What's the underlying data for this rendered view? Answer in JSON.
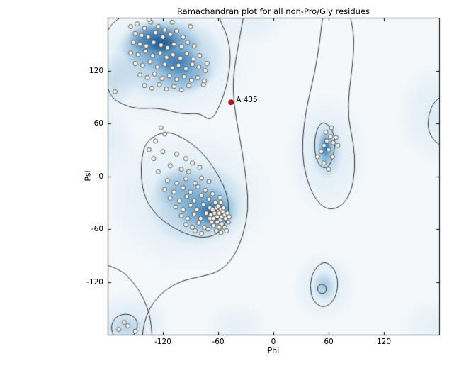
{
  "title": "Ramachandran plot for all non-Pro/Gly residues",
  "chart_data": {
    "type": "scatter",
    "title": "Ramachandran plot for all non-Pro/Gly residues",
    "xlabel": "Phi",
    "ylabel": "Psi",
    "xlim": [
      -180,
      180
    ],
    "ylim": [
      -180,
      180
    ],
    "xticks": [
      -120,
      -60,
      0,
      60,
      120
    ],
    "yticks": [
      -120,
      -60,
      0,
      60,
      120
    ],
    "grid": false,
    "legend": "none",
    "contour_color": "#1a1a1a",
    "palette": {
      "base": "#f4f8fb",
      "pale": "#dcebf5",
      "mid": "#9dc4e0",
      "strong": "#4b8fc2",
      "dark": "#1e5f9e",
      "darkest": "#12487f"
    },
    "point_style": {
      "fill": "#f6f3ed",
      "edge": "#3c3c36",
      "radius": 3
    },
    "outlier_style": {
      "fill": "#cc1111",
      "edge": "#550000",
      "radius": 3.4
    },
    "outlier": {
      "label": "A 435",
      "phi": -46,
      "psi": 84
    },
    "points": [
      [
        -155,
        170
      ],
      [
        -148,
        173
      ],
      [
        -140,
        168
      ],
      [
        -133,
        175
      ],
      [
        -125,
        170
      ],
      [
        -118,
        166
      ],
      [
        -135,
        178
      ],
      [
        -110,
        175
      ],
      [
        -150,
        162
      ],
      [
        -143,
        160
      ],
      [
        -136,
        158
      ],
      [
        -128,
        163
      ],
      [
        -120,
        158
      ],
      [
        -112,
        161
      ],
      [
        -105,
        165
      ],
      [
        -98,
        158
      ],
      [
        -90,
        170
      ],
      [
        -152,
        152
      ],
      [
        -145,
        150
      ],
      [
        -138,
        148
      ],
      [
        -130,
        152
      ],
      [
        -122,
        149
      ],
      [
        -115,
        146
      ],
      [
        -108,
        150
      ],
      [
        -100,
        147
      ],
      [
        -93,
        152
      ],
      [
        -86,
        148
      ],
      [
        -155,
        140
      ],
      [
        -147,
        138
      ],
      [
        -139,
        142
      ],
      [
        -131,
        137
      ],
      [
        -123,
        140
      ],
      [
        -116,
        135
      ],
      [
        -109,
        138
      ],
      [
        -101,
        134
      ],
      [
        -94,
        139
      ],
      [
        -87,
        133
      ],
      [
        -80,
        137
      ],
      [
        -150,
        128
      ],
      [
        -142,
        126
      ],
      [
        -134,
        130
      ],
      [
        -126,
        124
      ],
      [
        -118,
        127
      ],
      [
        -110,
        123
      ],
      [
        -103,
        126
      ],
      [
        -95,
        122
      ],
      [
        -88,
        127
      ],
      [
        -81,
        124
      ],
      [
        -74,
        120
      ],
      [
        -145,
        115
      ],
      [
        -137,
        112
      ],
      [
        -129,
        116
      ],
      [
        -121,
        111
      ],
      [
        -113,
        114
      ],
      [
        -105,
        110
      ],
      [
        -97,
        113
      ],
      [
        -89,
        109
      ],
      [
        -82,
        112
      ],
      [
        -75,
        108
      ],
      [
        -140,
        103
      ],
      [
        -132,
        100
      ],
      [
        -124,
        104
      ],
      [
        -116,
        99
      ],
      [
        -108,
        102
      ],
      [
        -100,
        98
      ],
      [
        -92,
        103
      ],
      [
        -76,
        104
      ],
      [
        -72,
        128
      ],
      [
        -122,
        55
      ],
      [
        -118,
        48
      ],
      [
        -128,
        40
      ],
      [
        -135,
        30
      ],
      [
        -120,
        28
      ],
      [
        -105,
        25
      ],
      [
        -95,
        20
      ],
      [
        -88,
        15
      ],
      [
        -112,
        12
      ],
      [
        -100,
        8
      ],
      [
        -92,
        5
      ],
      [
        -80,
        10
      ],
      [
        -130,
        20
      ],
      [
        -125,
        5
      ],
      [
        -115,
        -5
      ],
      [
        -105,
        -8
      ],
      [
        -95,
        -3
      ],
      [
        -85,
        -8
      ],
      [
        -78,
        -2
      ],
      [
        -70,
        -6
      ],
      [
        -118,
        -15
      ],
      [
        -108,
        -18
      ],
      [
        -98,
        -13
      ],
      [
        -90,
        -18
      ],
      [
        -82,
        -12
      ],
      [
        -74,
        -16
      ],
      [
        -66,
        -20
      ],
      [
        -112,
        -25
      ],
      [
        -102,
        -28
      ],
      [
        -94,
        -23
      ],
      [
        -86,
        -28
      ],
      [
        -78,
        -22
      ],
      [
        -70,
        -26
      ],
      [
        -63,
        -30
      ],
      [
        -58,
        -24
      ],
      [
        -106,
        -35
      ],
      [
        -98,
        -38
      ],
      [
        -90,
        -33
      ],
      [
        -83,
        -38
      ],
      [
        -76,
        -32
      ],
      [
        -69,
        -36
      ],
      [
        -100,
        -45
      ],
      [
        -93,
        -48
      ],
      [
        -86,
        -43
      ],
      [
        -79,
        -48
      ],
      [
        -73,
        -42
      ],
      [
        -95,
        -55
      ],
      [
        -88,
        -58
      ],
      [
        -81,
        -53
      ],
      [
        -75,
        -58
      ],
      [
        -85,
        -62
      ],
      [
        -78,
        -65
      ],
      [
        -71,
        -60
      ],
      [
        -66,
        -38
      ],
      [
        -63,
        -44
      ],
      [
        -60,
        -40
      ],
      [
        -57,
        -38
      ],
      [
        -64,
        -42
      ],
      [
        -61,
        -46
      ],
      [
        -59,
        -42
      ],
      [
        -56,
        -46
      ],
      [
        -68,
        -44
      ],
      [
        -65,
        -48
      ],
      [
        -62,
        -36
      ],
      [
        -58,
        -50
      ],
      [
        -55,
        -40
      ],
      [
        -53,
        -44
      ],
      [
        -60,
        -34
      ],
      [
        -57,
        -30
      ],
      [
        -54,
        -36
      ],
      [
        -52,
        -48
      ],
      [
        -50,
        -42
      ],
      [
        -56,
        -54
      ],
      [
        -61,
        -52
      ],
      [
        -65,
        -56
      ],
      [
        -59,
        -58
      ],
      [
        -53,
        -58
      ],
      [
        -49,
        -52
      ],
      [
        -62,
        -62
      ],
      [
        -57,
        -64
      ],
      [
        -51,
        -62
      ],
      [
        -67,
        -52
      ],
      [
        -69,
        -48
      ],
      [
        -48,
        -46
      ],
      [
        58,
        40
      ],
      [
        62,
        45
      ],
      [
        55,
        35
      ],
      [
        65,
        38
      ],
      [
        60,
        30
      ],
      [
        52,
        28
      ],
      [
        68,
        44
      ],
      [
        57,
        50
      ],
      [
        63,
        55
      ],
      [
        48,
        22
      ],
      [
        55,
        15
      ],
      [
        60,
        8
      ],
      [
        70,
        35
      ],
      [
        64,
        22
      ],
      [
        -172,
        96
      ],
      [
        -168,
        -174
      ],
      [
        -158,
        -170
      ],
      [
        -150,
        -176
      ],
      [
        -162,
        -166
      ]
    ],
    "density_blobs": [
      [
        -115,
        130,
        95,
        75,
        "pale",
        1
      ],
      [
        -95,
        -25,
        95,
        85,
        "pale",
        1
      ],
      [
        58,
        25,
        45,
        70,
        "pale",
        1
      ],
      [
        55,
        -125,
        35,
        40,
        "pale",
        1
      ],
      [
        -155,
        -165,
        45,
        35,
        "pale",
        1
      ],
      [
        178,
        70,
        45,
        60,
        "pale",
        0.9
      ],
      [
        -25,
        175,
        40,
        28,
        "pale",
        0.7
      ],
      [
        175,
        -170,
        40,
        32,
        "pale",
        0.6
      ],
      [
        -178,
        40,
        30,
        45,
        "pale",
        0.8
      ],
      [
        -40,
        -170,
        35,
        30,
        "pale",
        0.6
      ],
      [
        -115,
        135,
        62,
        48,
        "mid",
        0.95
      ],
      [
        -82,
        -32,
        56,
        48,
        "mid",
        0.95
      ],
      [
        58,
        30,
        17,
        34,
        "mid",
        0.9
      ],
      [
        55,
        -125,
        13,
        17,
        "mid",
        0.85
      ],
      [
        -160,
        -172,
        22,
        16,
        "mid",
        0.6
      ],
      [
        -172,
        110,
        25,
        30,
        "mid",
        0.5
      ],
      [
        -122,
        148,
        45,
        30,
        "strong",
        0.85
      ],
      [
        -98,
        120,
        34,
        26,
        "strong",
        0.7
      ],
      [
        -72,
        -38,
        34,
        28,
        "strong",
        0.9
      ],
      [
        -100,
        -15,
        30,
        25,
        "strong",
        0.45
      ],
      [
        57,
        32,
        9,
        20,
        "strong",
        0.8
      ],
      [
        -128,
        155,
        30,
        18,
        "dark",
        0.8
      ],
      [
        -105,
        130,
        22,
        16,
        "dark",
        0.55
      ],
      [
        -64,
        -42,
        19,
        15,
        "dark",
        0.85
      ],
      [
        57,
        34,
        5,
        12,
        "dark",
        0.55
      ],
      [
        -120,
        150,
        15,
        10,
        "darkest",
        0.65
      ],
      [
        -62,
        -43,
        10,
        8,
        "darkest",
        0.7
      ]
    ],
    "contours": [
      {
        "closed": true,
        "pts": [
          [
            -185,
            95
          ],
          [
            -155,
            76
          ],
          [
            -125,
            78
          ],
          [
            -98,
            70
          ],
          [
            -80,
            72
          ],
          [
            -68,
            62
          ],
          [
            -58,
            80
          ],
          [
            -50,
            105
          ],
          [
            -46,
            135
          ],
          [
            -50,
            160
          ],
          [
            -58,
            176
          ],
          [
            -60,
            190
          ],
          [
            -185,
            190
          ]
        ]
      },
      {
        "closed": true,
        "pts": [
          [
            -138,
            40
          ],
          [
            -118,
            52
          ],
          [
            -98,
            44
          ],
          [
            -80,
            30
          ],
          [
            -66,
            12
          ],
          [
            -54,
            -10
          ],
          [
            -48,
            -30
          ],
          [
            -50,
            -50
          ],
          [
            -58,
            -64
          ],
          [
            -72,
            -70
          ],
          [
            -90,
            -68
          ],
          [
            -110,
            -58
          ],
          [
            -128,
            -44
          ],
          [
            -140,
            -24
          ],
          [
            -144,
            0
          ],
          [
            -143,
            22
          ]
        ]
      },
      {
        "closed": false,
        "pts": [
          [
            -30,
            195
          ],
          [
            -38,
            150
          ],
          [
            -44,
            112
          ],
          [
            -43,
            82
          ],
          [
            -38,
            52
          ],
          [
            -33,
            22
          ],
          [
            -29,
            -8
          ],
          [
            -27,
            -38
          ],
          [
            -33,
            -68
          ],
          [
            -43,
            -92
          ],
          [
            -58,
            -108
          ],
          [
            -78,
            -114
          ],
          [
            -98,
            -118
          ],
          [
            -116,
            -128
          ],
          [
            -130,
            -142
          ],
          [
            -138,
            -158
          ],
          [
            -142,
            -175
          ],
          [
            -143,
            -195
          ]
        ]
      },
      {
        "closed": false,
        "pts": [
          [
            -195,
            -96
          ],
          [
            -168,
            -104
          ],
          [
            -152,
            -120
          ],
          [
            -140,
            -140
          ],
          [
            -133,
            -162
          ],
          [
            -131,
            -195
          ]
        ]
      },
      {
        "closed": true,
        "pts": [
          [
            -170,
            -158
          ],
          [
            -156,
            -156
          ],
          [
            -147,
            -164
          ],
          [
            -149,
            -178
          ],
          [
            -160,
            -188
          ],
          [
            -173,
            -184
          ],
          [
            -177,
            -170
          ]
        ]
      },
      {
        "closed": true,
        "pts": [
          [
            55,
            195
          ],
          [
            50,
            150
          ],
          [
            45,
            118
          ],
          [
            38,
            88
          ],
          [
            33,
            58
          ],
          [
            31,
            28
          ],
          [
            35,
            0
          ],
          [
            44,
            -24
          ],
          [
            57,
            -38
          ],
          [
            72,
            -36
          ],
          [
            84,
            -20
          ],
          [
            89,
            8
          ],
          [
            87,
            38
          ],
          [
            81,
            66
          ],
          [
            82,
            96
          ],
          [
            86,
            126
          ],
          [
            88,
            156
          ],
          [
            84,
            180
          ],
          [
            80,
            195
          ]
        ]
      },
      {
        "closed": true,
        "pts": [
          [
            52,
            62
          ],
          [
            61,
            58
          ],
          [
            67,
            44
          ],
          [
            66,
            24
          ],
          [
            59,
            8
          ],
          [
            49,
            12
          ],
          [
            44,
            30
          ],
          [
            46,
            50
          ]
        ]
      },
      {
        "closed": true,
        "pts": [
          [
            55,
            -96
          ],
          [
            66,
            -104
          ],
          [
            71,
            -122
          ],
          [
            66,
            -142
          ],
          [
            54,
            -150
          ],
          [
            43,
            -142
          ],
          [
            39,
            -124
          ],
          [
            44,
            -106
          ]
        ]
      },
      {
        "closed": true,
        "pts": [
          [
            52,
            -122
          ],
          [
            57,
            -124
          ],
          [
            58,
            -131
          ],
          [
            53,
            -134
          ],
          [
            48,
            -131
          ],
          [
            48,
            -125
          ]
        ]
      },
      {
        "closed": false,
        "pts": [
          [
            195,
            100
          ],
          [
            176,
            88
          ],
          [
            168,
            70
          ],
          [
            168,
            50
          ],
          [
            178,
            36
          ],
          [
            195,
            30
          ]
        ]
      }
    ]
  }
}
